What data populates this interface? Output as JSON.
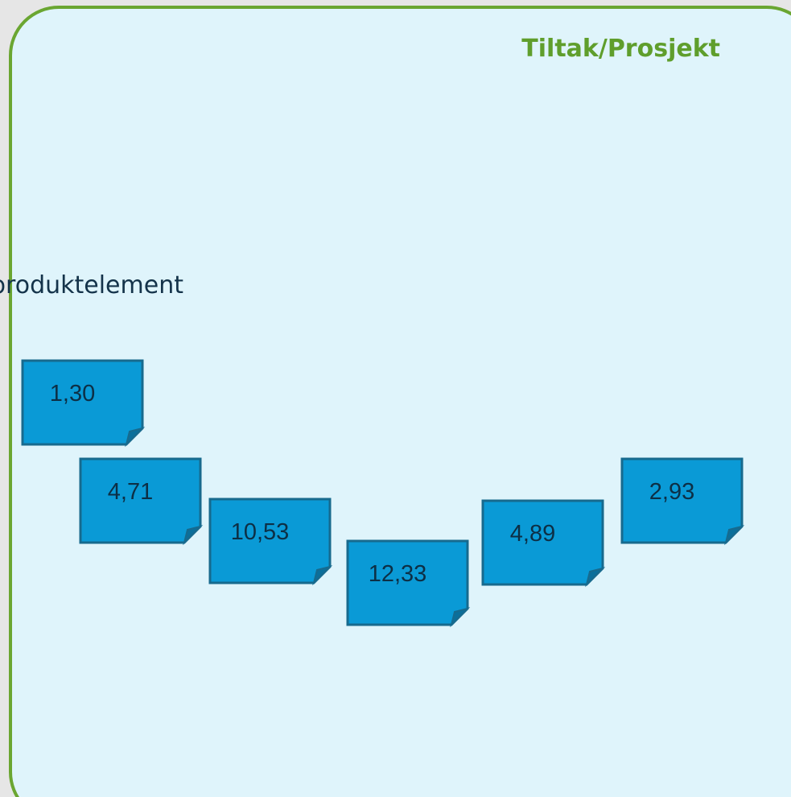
{
  "title": "Tiltak/Prosjekt",
  "label": "produktelement",
  "notes": [
    "1,30",
    "4,71",
    "10,53",
    "12,33",
    "4,89",
    "2,93"
  ]
}
